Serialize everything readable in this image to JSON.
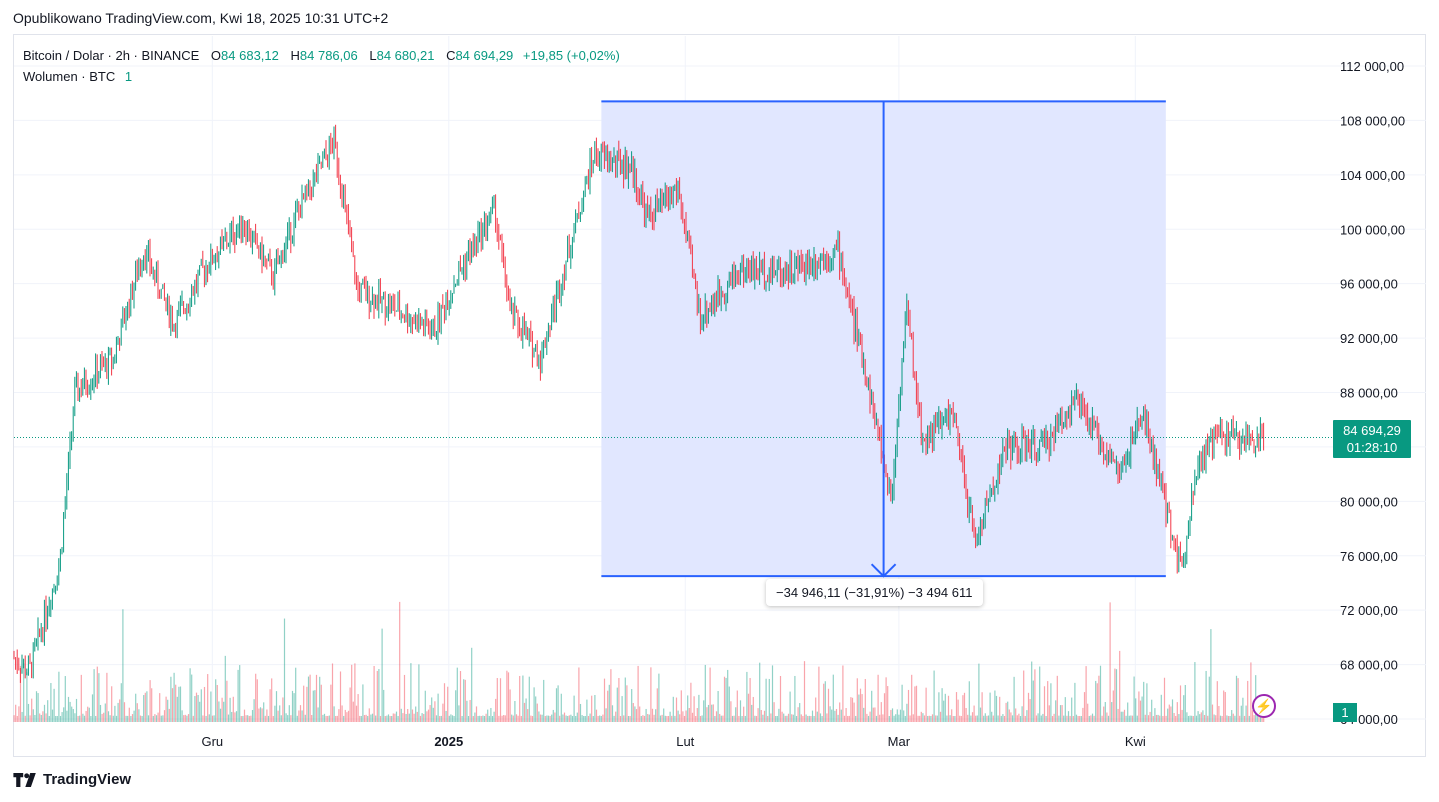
{
  "header": {
    "published": "Opublikowano TradingView.com, Kwi 18, 2025 10:31 UTC+2"
  },
  "legend": {
    "symbol": "Bitcoin / Dolar · 2h · BINANCE",
    "o_label": "O",
    "o_value": "84 683,12",
    "h_label": "H",
    "h_value": "84 786,06",
    "l_label": "L",
    "l_value": "84 680,21",
    "c_label": "C",
    "c_value": "84 694,29",
    "change": "+19,85 (+0,02%)",
    "volume_label": "Wolumen · BTC",
    "volume_value": "1"
  },
  "price_tag": {
    "price": "84 694,29",
    "countdown": "01:28:10"
  },
  "volume_tag": "1",
  "measure": {
    "label": "−34 946,11 (−31,91%) −3 494 611",
    "from_price": 109400,
    "to_price": 74500
  },
  "colors": {
    "up": "#089981",
    "down": "#f23645",
    "measure_line": "#2962ff",
    "measure_fill": "#dfe6ff"
  },
  "chart_data": {
    "type": "candlestick",
    "title": "Bitcoin / Dolar · 2h · BINANCE",
    "y_ticks": [
      "112 000,00",
      "108 000,00",
      "104 000,00",
      "100 000,00",
      "96 000,00",
      "92 000,00",
      "88 000,00",
      "84 000,00",
      "80 000,00",
      "76 000,00",
      "72 000,00",
      "68 000,00",
      "64 000,00"
    ],
    "y_tick_values": [
      112000,
      108000,
      104000,
      100000,
      96000,
      92000,
      88000,
      84000,
      80000,
      76000,
      72000,
      68000,
      64000
    ],
    "ylim": [
      63000,
      116000
    ],
    "x_ticks": [
      "Gru",
      "2025",
      "Lut",
      "Mar",
      "Kwi"
    ],
    "x_tick_dates": [
      "2024-12-01",
      "2025-01-01",
      "2025-02-01",
      "2025-03-01",
      "2025-04-01"
    ],
    "date_range": [
      "2024-11-05",
      "2025-04-18"
    ],
    "price_path": {
      "dates": [
        "2024-11-05",
        "2024-11-07",
        "2024-11-11",
        "2024-11-13",
        "2024-11-18",
        "2024-11-22",
        "2024-11-26",
        "2024-11-30",
        "2024-12-05",
        "2024-12-09",
        "2024-12-12",
        "2024-12-17",
        "2024-12-20",
        "2024-12-24",
        "2024-12-30",
        "2025-01-02",
        "2025-01-07",
        "2025-01-09",
        "2025-01-13",
        "2025-01-20",
        "2025-01-25",
        "2025-01-27",
        "2025-01-31",
        "2025-02-03",
        "2025-02-08",
        "2025-02-15",
        "2025-02-21",
        "2025-02-25",
        "2025-02-28",
        "2025-03-02",
        "2025-03-04",
        "2025-03-08",
        "2025-03-11",
        "2025-03-15",
        "2025-03-20",
        "2025-03-24",
        "2025-03-30",
        "2025-04-02",
        "2025-04-07",
        "2025-04-09",
        "2025-04-12",
        "2025-04-15",
        "2025-04-18"
      ],
      "values": [
        68500,
        67500,
        75500,
        88000,
        90500,
        98500,
        93000,
        97200,
        100500,
        96500,
        101000,
        106500,
        95500,
        94500,
        92500,
        96500,
        101500,
        94000,
        90500,
        105500,
        104500,
        100800,
        103000,
        93500,
        97000,
        97000,
        98500,
        88500,
        80000,
        94500,
        84500,
        86500,
        77000,
        84000,
        84000,
        87500,
        82000,
        86500,
        75000,
        82500,
        85000,
        84500,
        84700
      ]
    },
    "volume_unit": "BTC"
  }
}
